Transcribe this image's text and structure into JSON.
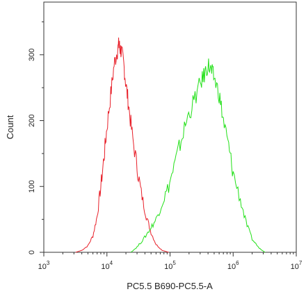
{
  "chart_data": {
    "type": "line",
    "title": "",
    "xlabel": "PC5.5 B690-PC5.5-A",
    "ylabel": "Count",
    "x_scale": "log",
    "xlim": [
      1000,
      10000000
    ],
    "ylim": [
      0,
      380
    ],
    "grid": false,
    "legend": "none",
    "x_ticks": [
      {
        "base": "10",
        "exp": "3",
        "value": 1000
      },
      {
        "base": "10",
        "exp": "4",
        "value": 10000
      },
      {
        "base": "10",
        "exp": "5",
        "value": 100000
      },
      {
        "base": "10",
        "exp": "6",
        "value": 1000000
      },
      {
        "base": "10",
        "exp": "7",
        "value": 10000000
      }
    ],
    "y_ticks": [
      {
        "label": "0",
        "value": 0
      },
      {
        "label": "100",
        "value": 100
      },
      {
        "label": "200",
        "value": 200
      },
      {
        "label": "300",
        "value": 300
      }
    ],
    "series": [
      {
        "color": "#e8202a",
        "points": [
          [
            3200,
            0
          ],
          [
            4000,
            3
          ],
          [
            5000,
            10
          ],
          [
            6000,
            25
          ],
          [
            7000,
            55
          ],
          [
            8000,
            100
          ],
          [
            9000,
            145
          ],
          [
            10000,
            190
          ],
          [
            11500,
            240
          ],
          [
            13000,
            285
          ],
          [
            14500,
            305
          ],
          [
            15500,
            315
          ],
          [
            16000,
            310
          ],
          [
            17000,
            305
          ],
          [
            18500,
            285
          ],
          [
            20000,
            255
          ],
          [
            22000,
            225
          ],
          [
            25000,
            180
          ],
          [
            30000,
            130
          ],
          [
            35000,
            90
          ],
          [
            42000,
            55
          ],
          [
            50000,
            30
          ],
          [
            60000,
            12
          ],
          [
            75000,
            3
          ],
          [
            95000,
            0
          ]
        ]
      },
      {
        "color": "#22e018",
        "points": [
          [
            24000,
            0
          ],
          [
            30000,
            8
          ],
          [
            38000,
            20
          ],
          [
            48000,
            35
          ],
          [
            60000,
            50
          ],
          [
            75000,
            75
          ],
          [
            95000,
            100
          ],
          [
            120000,
            135
          ],
          [
            150000,
            170
          ],
          [
            190000,
            205
          ],
          [
            240000,
            230
          ],
          [
            300000,
            255
          ],
          [
            350000,
            270
          ],
          [
            400000,
            285
          ],
          [
            450000,
            275
          ],
          [
            500000,
            265
          ],
          [
            600000,
            240
          ],
          [
            700000,
            200
          ],
          [
            850000,
            160
          ],
          [
            1000000,
            120
          ],
          [
            1300000,
            80
          ],
          [
            1600000,
            45
          ],
          [
            2000000,
            20
          ],
          [
            2600000,
            6
          ],
          [
            3200000,
            0
          ]
        ]
      }
    ]
  }
}
